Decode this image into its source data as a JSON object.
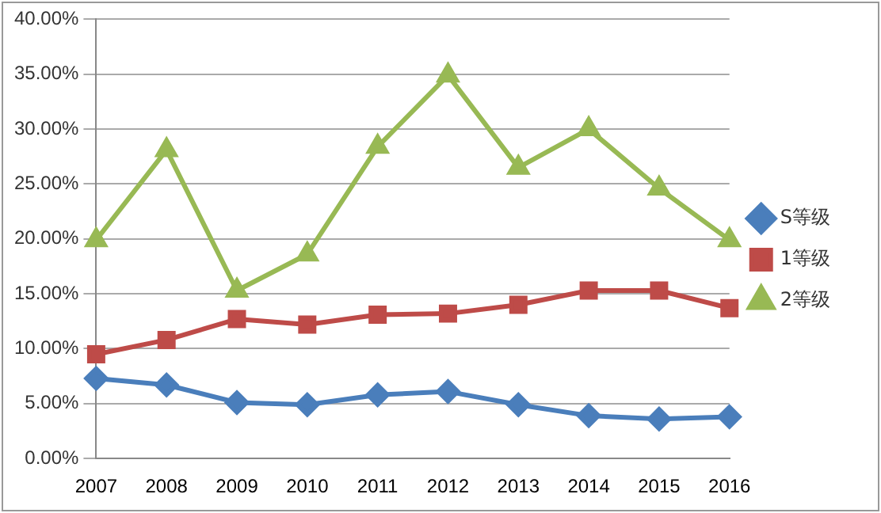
{
  "chart_data": {
    "type": "line",
    "categories": [
      "2007",
      "2008",
      "2009",
      "2010",
      "2011",
      "2012",
      "2013",
      "2014",
      "2015",
      "2016"
    ],
    "series": [
      {
        "name": "S等级",
        "color": "#4a7ebb",
        "marker": "diamond",
        "values": [
          7.3,
          6.7,
          5.1,
          4.9,
          5.8,
          6.1,
          4.9,
          3.9,
          3.6,
          3.8
        ]
      },
      {
        "name": "1等级",
        "color": "#be4b48",
        "marker": "square",
        "values": [
          9.5,
          10.8,
          12.7,
          12.2,
          13.1,
          13.2,
          14.0,
          15.3,
          15.3,
          13.7
        ]
      },
      {
        "name": "2等级",
        "color": "#98b954",
        "marker": "triangle",
        "values": [
          19.9,
          28.1,
          15.3,
          18.6,
          28.4,
          34.9,
          26.5,
          30.0,
          24.6,
          19.9
        ]
      }
    ],
    "ylim": [
      0,
      40
    ],
    "yticks": [
      {
        "value": 0,
        "label": "0.00%"
      },
      {
        "value": 5,
        "label": "5.00%"
      },
      {
        "value": 10,
        "label": "10.00%"
      },
      {
        "value": 15,
        "label": "15.00%"
      },
      {
        "value": 20,
        "label": "20.00%"
      },
      {
        "value": 25,
        "label": "25.00%"
      },
      {
        "value": 30,
        "label": "30.00%"
      },
      {
        "value": 35,
        "label": "35.00%"
      },
      {
        "value": 40,
        "label": "40.00%"
      }
    ],
    "grid": "y",
    "legend": "right"
  }
}
